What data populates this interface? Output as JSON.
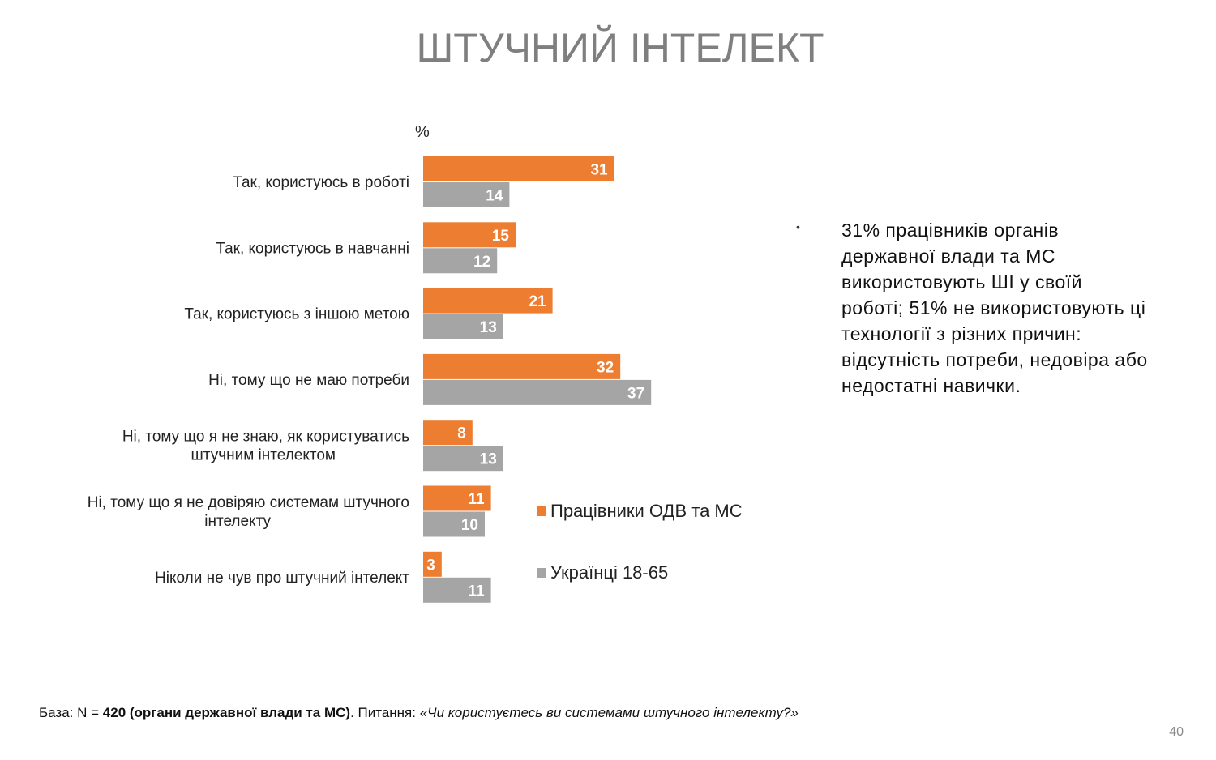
{
  "title": "ШТУЧНИЙ ІНТЕЛЕКТ",
  "colors": {
    "orange": "#ED7D31",
    "gray": "#A5A5A5",
    "title": "#7F7F7F"
  },
  "chart_data": {
    "type": "bar",
    "orientation": "horizontal",
    "unit_label": "%",
    "categories": [
      "Так, користуюсь в роботі",
      "Так, користуюсь в навчанні",
      "Так, користуюсь з іншою метою",
      "Ні, тому що не маю потреби",
      "Ні, тому що я не знаю, як користуватись штучним інтелектом",
      "Ні, тому що я не довіряю системам штучного інтелекту",
      "Ніколи не чув про штучний інтелект"
    ],
    "category_lines": [
      [
        "Так, користуюсь в роботі"
      ],
      [
        "Так, користуюсь в навчанні"
      ],
      [
        "Так, користуюсь з іншою метою"
      ],
      [
        "Ні, тому що не маю потреби"
      ],
      [
        "Ні, тому що я не знаю, як користуватись",
        "штучним інтелектом"
      ],
      [
        "Ні, тому що я не довіряю системам штучного",
        "інтелекту"
      ],
      [
        "Ніколи не чув про штучний інтелект"
      ]
    ],
    "series": [
      {
        "name": "Працівники ОДВ та МС",
        "color": "#ED7D31",
        "values": [
          31,
          15,
          21,
          32,
          8,
          11,
          3
        ]
      },
      {
        "name": "Українці 18-65",
        "color": "#A5A5A5",
        "values": [
          14,
          12,
          13,
          37,
          13,
          10,
          11
        ]
      }
    ],
    "grid": false,
    "legend_position": "right"
  },
  "note": "31% працівників органів державної влади та МС використовують ШІ у своїй роботі; 51% не використовують ці технології з різних причин: відсутність потреби, недовіра або недостатні навички.",
  "footer": {
    "base_prefix": "База: N = ",
    "base_bold": "420 (органи державної влади та МС)",
    "question_prefix": ". Питання: ",
    "question_italic": "«Чи користуєтесь ви системами штучного інтелекту?»"
  },
  "page_number": "40"
}
